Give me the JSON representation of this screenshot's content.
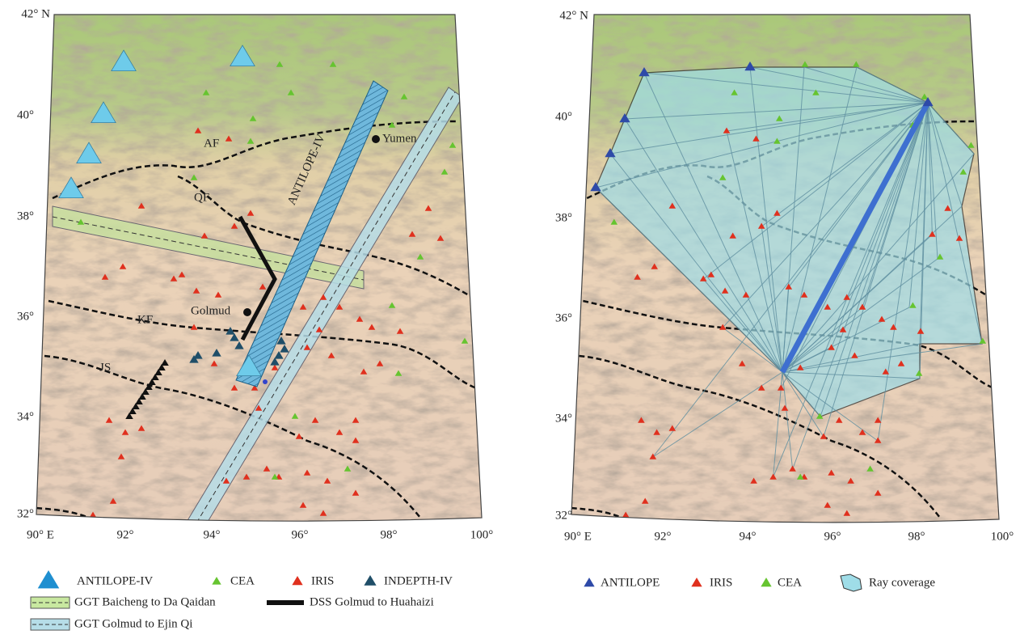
{
  "left_map": {
    "lat_labels": [
      "42° N",
      "40°",
      "38°",
      "36°",
      "34°",
      "32°"
    ],
    "lon_labels": [
      "90° E",
      "92°",
      "94°",
      "96°",
      "98°",
      "100°"
    ],
    "annotations": {
      "af": "AF",
      "qf": "QF",
      "kf": "KF",
      "js": "JS",
      "antilope": "ANTILOPE-IV",
      "yumen": "Yumen",
      "golmud": "Golmud"
    },
    "legend": [
      "ANTILOPE-IV",
      "CEA",
      "IRIS",
      "INDEPTH-IV",
      "GGT Baicheng to Da Qaidan",
      "DSS Golmud to Huahaizi",
      "GGT Golmud to Ejin Qi"
    ]
  },
  "right_map": {
    "lat_labels": [
      "42° N",
      "40°",
      "38°",
      "36°",
      "34°",
      "32°"
    ],
    "lon_labels": [
      "90° E",
      "92°",
      "94°",
      "96°",
      "98°",
      "100°"
    ],
    "legend": [
      "ANTILOPE",
      "IRIS",
      "CEA",
      "Ray coverage"
    ]
  }
}
